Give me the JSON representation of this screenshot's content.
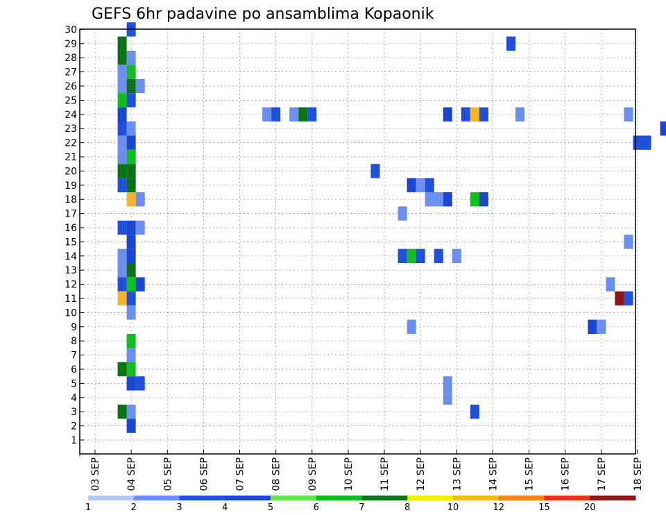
{
  "chart_data": {
    "type": "heatmap",
    "title": "GEFS 6hr padavine po ansamblima Kopaonik",
    "xlabel": "",
    "ylabel": "",
    "x_tick_labels": [
      "03 SEP",
      "04 SEP",
      "05 SEP",
      "06 SEP",
      "07 SEP",
      "08 SEP",
      "09 SEP",
      "10 SEP",
      "11 SEP",
      "12 SEP",
      "13 SEP",
      "14 SEP",
      "15 SEP",
      "16 SEP",
      "17 SEP",
      "18 SEP"
    ],
    "y_members": [
      1,
      2,
      3,
      4,
      5,
      6,
      7,
      8,
      9,
      10,
      11,
      12,
      13,
      14,
      15,
      16,
      17,
      18,
      19,
      20,
      21,
      22,
      23,
      24,
      25,
      26,
      27,
      28,
      29,
      30
    ],
    "x_step_days": 0.25,
    "grid": true,
    "colorbar": {
      "labels": [
        "1",
        "2",
        "3",
        "4",
        "5",
        "6",
        "7",
        "8",
        "10",
        "12",
        "15",
        "20"
      ],
      "colors": [
        "#b4c6f5",
        "#6a8ff0",
        "#1e50dc",
        "#1b46d2",
        "#64e64f",
        "#0fbe1e",
        "#0a7314",
        "#f0f000",
        "#f8b428",
        "#f5821e",
        "#e63214",
        "#8c1414"
      ]
    },
    "cells": [
      {
        "m": 30,
        "t": "04 SEP 00Z",
        "c": 2
      },
      {
        "m": 29,
        "t": "03 SEP 18Z",
        "c": 6
      },
      {
        "m": 29,
        "t": "14 SEP 12Z",
        "c": 2
      },
      {
        "m": 28,
        "t": "03 SEP 18Z",
        "c": 6
      },
      {
        "m": 28,
        "t": "04 SEP 00Z",
        "c": 1
      },
      {
        "m": 27,
        "t": "03 SEP 18Z",
        "c": 1
      },
      {
        "m": 27,
        "t": "04 SEP 00Z",
        "c": 5
      },
      {
        "m": 26,
        "t": "03 SEP 18Z",
        "c": 1
      },
      {
        "m": 26,
        "t": "04 SEP 00Z",
        "c": 6
      },
      {
        "m": 26,
        "t": "04 SEP 06Z",
        "c": 1
      },
      {
        "m": 25,
        "t": "03 SEP 18Z",
        "c": 5
      },
      {
        "m": 25,
        "t": "04 SEP 00Z",
        "c": 2
      },
      {
        "m": 24,
        "t": "03 SEP 18Z",
        "c": 3
      },
      {
        "m": 24,
        "t": "07 SEP 18Z",
        "c": 1
      },
      {
        "m": 24,
        "t": "08 SEP 00Z",
        "c": 2
      },
      {
        "m": 24,
        "t": "08 SEP 12Z",
        "c": 1
      },
      {
        "m": 24,
        "t": "08 SEP 18Z",
        "c": 6
      },
      {
        "m": 24,
        "t": "09 SEP 00Z",
        "c": 2
      },
      {
        "m": 24,
        "t": "12 SEP 18Z",
        "c": 3
      },
      {
        "m": 24,
        "t": "13 SEP 06Z",
        "c": 2
      },
      {
        "m": 24,
        "t": "13 SEP 12Z",
        "c": 8
      },
      {
        "m": 24,
        "t": "13 SEP 18Z",
        "c": 2
      },
      {
        "m": 24,
        "t": "14 SEP 18Z",
        "c": 1
      },
      {
        "m": 24,
        "t": "17 SEP 18Z",
        "c": 1
      },
      {
        "m": 23,
        "t": "03 SEP 18Z",
        "c": 2
      },
      {
        "m": 23,
        "t": "04 SEP 00Z",
        "c": 1
      },
      {
        "m": 23,
        "t": "18 SEP 18Z",
        "c": 3
      },
      {
        "m": 22,
        "t": "03 SEP 18Z",
        "c": 1
      },
      {
        "m": 22,
        "t": "04 SEP 00Z",
        "c": 3
      },
      {
        "m": 22,
        "t": "18 SEP 00Z",
        "c": 2
      },
      {
        "m": 22,
        "t": "18 SEP 06Z",
        "c": 2
      },
      {
        "m": 21,
        "t": "03 SEP 18Z",
        "c": 1
      },
      {
        "m": 21,
        "t": "04 SEP 00Z",
        "c": 5
      },
      {
        "m": 20,
        "t": "03 SEP 18Z",
        "c": 6
      },
      {
        "m": 20,
        "t": "04 SEP 00Z",
        "c": 6
      },
      {
        "m": 20,
        "t": "10 SEP 18Z",
        "c": 2
      },
      {
        "m": 19,
        "t": "03 SEP 18Z",
        "c": 2
      },
      {
        "m": 19,
        "t": "04 SEP 00Z",
        "c": 6
      },
      {
        "m": 19,
        "t": "11 SEP 18Z",
        "c": 3
      },
      {
        "m": 19,
        "t": "12 SEP 00Z",
        "c": 1
      },
      {
        "m": 19,
        "t": "12 SEP 06Z",
        "c": 2
      },
      {
        "m": 18,
        "t": "04 SEP 00Z",
        "c": 8
      },
      {
        "m": 18,
        "t": "04 SEP 06Z",
        "c": 1
      },
      {
        "m": 18,
        "t": "12 SEP 06Z",
        "c": 1
      },
      {
        "m": 18,
        "t": "12 SEP 12Z",
        "c": 1
      },
      {
        "m": 18,
        "t": "12 SEP 18Z",
        "c": 3
      },
      {
        "m": 18,
        "t": "13 SEP 12Z",
        "c": 5
      },
      {
        "m": 18,
        "t": "13 SEP 18Z",
        "c": 3
      },
      {
        "m": 17,
        "t": "11 SEP 12Z",
        "c": 1
      },
      {
        "m": 16,
        "t": "03 SEP 18Z",
        "c": 2
      },
      {
        "m": 16,
        "t": "04 SEP 00Z",
        "c": 3
      },
      {
        "m": 16,
        "t": "04 SEP 06Z",
        "c": 1
      },
      {
        "m": 15,
        "t": "04 SEP 00Z",
        "c": 3
      },
      {
        "m": 15,
        "t": "17 SEP 18Z",
        "c": 1
      },
      {
        "m": 14,
        "t": "03 SEP 18Z",
        "c": 1
      },
      {
        "m": 14,
        "t": "04 SEP 00Z",
        "c": 3
      },
      {
        "m": 14,
        "t": "11 SEP 12Z",
        "c": 2
      },
      {
        "m": 14,
        "t": "11 SEP 18Z",
        "c": 5
      },
      {
        "m": 14,
        "t": "12 SEP 00Z",
        "c": 2
      },
      {
        "m": 14,
        "t": "12 SEP 12Z",
        "c": 2
      },
      {
        "m": 14,
        "t": "13 SEP 00Z",
        "c": 1
      },
      {
        "m": 13,
        "t": "03 SEP 18Z",
        "c": 1
      },
      {
        "m": 13,
        "t": "04 SEP 00Z",
        "c": 6
      },
      {
        "m": 12,
        "t": "03 SEP 18Z",
        "c": 2
      },
      {
        "m": 12,
        "t": "04 SEP 00Z",
        "c": 5
      },
      {
        "m": 12,
        "t": "04 SEP 06Z",
        "c": 3
      },
      {
        "m": 12,
        "t": "17 SEP 06Z",
        "c": 1
      },
      {
        "m": 11,
        "t": "03 SEP 18Z",
        "c": 8
      },
      {
        "m": 11,
        "t": "04 SEP 00Z",
        "c": 2
      },
      {
        "m": 11,
        "t": "17 SEP 12Z",
        "c": 11
      },
      {
        "m": 11,
        "t": "17 SEP 18Z",
        "c": 2
      },
      {
        "m": 10,
        "t": "04 SEP 00Z",
        "c": 1
      },
      {
        "m": 9,
        "t": "11 SEP 18Z",
        "c": 1
      },
      {
        "m": 9,
        "t": "16 SEP 18Z",
        "c": 3
      },
      {
        "m": 9,
        "t": "17 SEP 00Z",
        "c": 1
      },
      {
        "m": 8,
        "t": "04 SEP 00Z",
        "c": 5
      },
      {
        "m": 7,
        "t": "04 SEP 00Z",
        "c": 1
      },
      {
        "m": 6,
        "t": "03 SEP 18Z",
        "c": 6
      },
      {
        "m": 6,
        "t": "04 SEP 00Z",
        "c": 5
      },
      {
        "m": 5,
        "t": "04 SEP 00Z",
        "c": 3
      },
      {
        "m": 5,
        "t": "04 SEP 06Z",
        "c": 2
      },
      {
        "m": 5,
        "t": "12 SEP 18Z",
        "c": 1
      },
      {
        "m": 4,
        "t": "12 SEP 18Z",
        "c": 1
      },
      {
        "m": 3,
        "t": "03 SEP 18Z",
        "c": 6
      },
      {
        "m": 3,
        "t": "04 SEP 00Z",
        "c": 1
      },
      {
        "m": 3,
        "t": "13 SEP 12Z",
        "c": 2
      },
      {
        "m": 2,
        "t": "04 SEP 00Z",
        "c": 3
      }
    ]
  }
}
